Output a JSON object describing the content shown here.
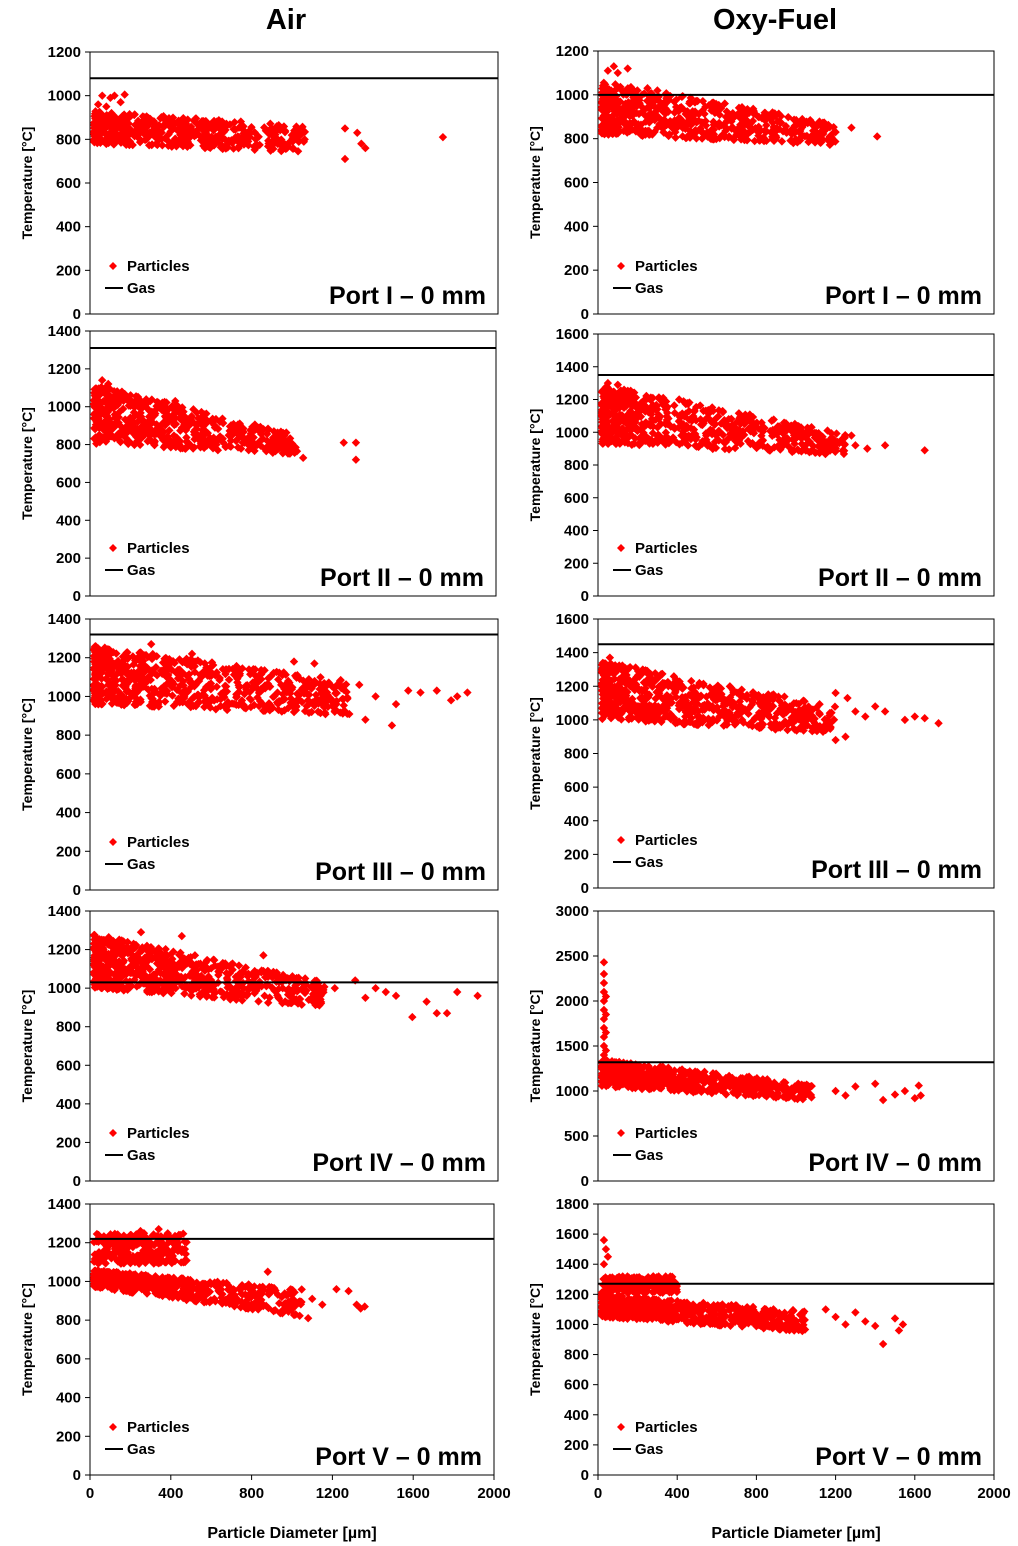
{
  "columns": [
    "Air",
    "Oxy-Fuel"
  ],
  "chart_data": [
    {
      "type": "scatter",
      "panel": "Port I – 0 mm",
      "column": "Air",
      "ylabel": "Temperature [°C]",
      "xlim": [
        0,
        2000
      ],
      "ylim": [
        0,
        1200
      ],
      "yticks": [
        0,
        200,
        400,
        600,
        800,
        1000,
        1200
      ],
      "series": [
        {
          "name": "Particles",
          "kind": "scatter",
          "color": "#ff0000",
          "cloud": {
            "x": [
              20,
              1060
            ],
            "y_start": [
              780,
              930
            ],
            "y_end": [
              740,
              860
            ],
            "count": 520
          },
          "points": [
            [
              40,
              960
            ],
            [
              60,
              1000
            ],
            [
              80,
              950
            ],
            [
              100,
              990
            ],
            [
              120,
              1000
            ],
            [
              150,
              970
            ],
            [
              170,
              1005
            ],
            [
              1250,
              850
            ],
            [
              1310,
              830
            ],
            [
              1330,
              780
            ],
            [
              1350,
              760
            ],
            [
              1250,
              710
            ],
            [
              1730,
              810
            ]
          ]
        },
        {
          "name": "Gas",
          "kind": "line",
          "color": "#000000",
          "y": 1080
        }
      ]
    },
    {
      "type": "scatter",
      "panel": "Port I – 0 mm",
      "column": "Oxy-Fuel",
      "ylabel": "Temperature [°C]",
      "xlim": [
        0,
        2000
      ],
      "ylim": [
        0,
        1200
      ],
      "yticks": [
        0,
        200,
        400,
        600,
        800,
        1000,
        1200
      ],
      "series": [
        {
          "name": "Particles",
          "kind": "scatter",
          "color": "#ff0000",
          "cloud": {
            "x": [
              20,
              1200
            ],
            "y_start": [
              820,
              1060
            ],
            "y_end": [
              770,
              870
            ],
            "count": 620
          },
          "points": [
            [
              50,
              1110
            ],
            [
              80,
              1130
            ],
            [
              100,
              1100
            ],
            [
              150,
              1120
            ],
            [
              250,
              1030
            ],
            [
              300,
              1020
            ],
            [
              1200,
              830
            ],
            [
              1280,
              850
            ],
            [
              1410,
              810
            ]
          ]
        },
        {
          "name": "Gas",
          "kind": "line",
          "color": "#000000",
          "y": 1000
        }
      ]
    },
    {
      "type": "scatter",
      "panel": "Port II – 0 mm",
      "column": "Air",
      "ylabel": "Temperature [°C]",
      "xlim": [
        0,
        2000
      ],
      "ylim": [
        0,
        1400
      ],
      "yticks": [
        0,
        200,
        400,
        600,
        800,
        1000,
        1200,
        1400
      ],
      "series": [
        {
          "name": "Particles",
          "kind": "scatter",
          "color": "#ff0000",
          "cloud": {
            "x": [
              20,
              1020
            ],
            "y_start": [
              800,
              1120
            ],
            "y_end": [
              750,
              850
            ],
            "count": 560
          },
          "points": [
            [
              60,
              1140
            ],
            [
              90,
              1120
            ],
            [
              200,
              1060
            ],
            [
              420,
              1030
            ],
            [
              1050,
              730
            ],
            [
              1250,
              810
            ],
            [
              1310,
              810
            ],
            [
              1310,
              720
            ]
          ]
        },
        {
          "name": "Gas",
          "kind": "line",
          "color": "#000000",
          "y": 1310
        }
      ]
    },
    {
      "type": "scatter",
      "panel": "Port II – 0 mm",
      "column": "Oxy-Fuel",
      "ylabel": "Temperature [°C]",
      "xlim": [
        0,
        2000
      ],
      "ylim": [
        0,
        1600
      ],
      "yticks": [
        0,
        200,
        400,
        600,
        800,
        1000,
        1200,
        1400,
        1600
      ],
      "series": [
        {
          "name": "Particles",
          "kind": "scatter",
          "color": "#ff0000",
          "cloud": {
            "x": [
              20,
              1250
            ],
            "y_start": [
              930,
              1290
            ],
            "y_end": [
              860,
              990
            ],
            "count": 650
          },
          "points": [
            [
              50,
              1300
            ],
            [
              100,
              1290
            ],
            [
              410,
              1200
            ],
            [
              440,
              1180
            ],
            [
              1280,
              980
            ],
            [
              1300,
              920
            ],
            [
              1360,
              900
            ],
            [
              1450,
              920
            ],
            [
              1650,
              890
            ]
          ]
        },
        {
          "name": "Gas",
          "kind": "line",
          "color": "#000000",
          "y": 1350
        }
      ]
    },
    {
      "type": "scatter",
      "panel": "Port III – 0 mm",
      "column": "Air",
      "ylabel": "Temperature [°C]",
      "xlim": [
        0,
        2000
      ],
      "ylim": [
        0,
        1400
      ],
      "yticks": [
        0,
        200,
        400,
        600,
        800,
        1000,
        1200,
        1400
      ],
      "series": [
        {
          "name": "Particles",
          "kind": "scatter",
          "color": "#ff0000",
          "cloud": {
            "x": [
              20,
              1280
            ],
            "y_start": [
              960,
              1260
            ],
            "y_end": [
              900,
              1080
            ],
            "count": 700
          },
          "points": [
            [
              300,
              1270
            ],
            [
              500,
              1220
            ],
            [
              1000,
              1180
            ],
            [
              1100,
              1170
            ],
            [
              1320,
              1060
            ],
            [
              1400,
              1000
            ],
            [
              1500,
              960
            ],
            [
              1560,
              1030
            ],
            [
              1620,
              1020
            ],
            [
              1700,
              1030
            ],
            [
              1770,
              980
            ],
            [
              1800,
              1000
            ],
            [
              1850,
              1020
            ],
            [
              1480,
              850
            ],
            [
              1350,
              880
            ]
          ]
        },
        {
          "name": "Gas",
          "kind": "line",
          "color": "#000000",
          "y": 1320
        }
      ]
    },
    {
      "type": "scatter",
      "panel": "Port III – 0 mm",
      "column": "Oxy-Fuel",
      "ylabel": "Temperature [°C]",
      "xlim": [
        0,
        2000
      ],
      "ylim": [
        0,
        1600
      ],
      "yticks": [
        0,
        200,
        400,
        600,
        800,
        1000,
        1200,
        1400,
        1600
      ],
      "series": [
        {
          "name": "Particles",
          "kind": "scatter",
          "color": "#ff0000",
          "cloud": {
            "x": [
              20,
              1200
            ],
            "y_start": [
              1000,
              1350
            ],
            "y_end": [
              920,
              1080
            ],
            "count": 680
          },
          "points": [
            [
              60,
              1370
            ],
            [
              1200,
              1160
            ],
            [
              1260,
              1130
            ],
            [
              1300,
              1050
            ],
            [
              1350,
              1020
            ],
            [
              1400,
              1080
            ],
            [
              1450,
              1050
            ],
            [
              1550,
              1000
            ],
            [
              1600,
              1020
            ],
            [
              1650,
              1010
            ],
            [
              1720,
              980
            ],
            [
              1250,
              900
            ],
            [
              1200,
              880
            ]
          ]
        },
        {
          "name": "Gas",
          "kind": "line",
          "color": "#000000",
          "y": 1450
        }
      ]
    },
    {
      "type": "scatter",
      "panel": "Port IV – 0 mm",
      "column": "Air",
      "ylabel": "Temperature [°C]",
      "xlim": [
        0,
        2000
      ],
      "ylim": [
        0,
        1400
      ],
      "yticks": [
        0,
        200,
        400,
        600,
        800,
        1000,
        1200,
        1400
      ],
      "series": [
        {
          "name": "Particles",
          "kind": "scatter",
          "color": "#ff0000",
          "cloud": {
            "x": [
              20,
              1150
            ],
            "y_start": [
              1000,
              1280
            ],
            "y_end": [
              900,
              1030
            ],
            "count": 700
          },
          "points": [
            [
              250,
              1290
            ],
            [
              450,
              1270
            ],
            [
              850,
              1170
            ],
            [
              1200,
              1000
            ],
            [
              1300,
              1040
            ],
            [
              1350,
              950
            ],
            [
              1400,
              1000
            ],
            [
              1450,
              980
            ],
            [
              1500,
              960
            ],
            [
              1580,
              850
            ],
            [
              1650,
              930
            ],
            [
              1750,
              870
            ],
            [
              1800,
              980
            ],
            [
              1900,
              960
            ],
            [
              1700,
              870
            ]
          ]
        },
        {
          "name": "Gas",
          "kind": "line",
          "color": "#000000",
          "y": 1030
        }
      ]
    },
    {
      "type": "scatter",
      "panel": "Port IV – 0 mm",
      "column": "Oxy-Fuel",
      "ylabel": "Temperature [°C]",
      "xlim": [
        0,
        2000
      ],
      "ylim": [
        0,
        3000
      ],
      "yticks": [
        0,
        500,
        1000,
        1500,
        2000,
        2500,
        3000
      ],
      "series": [
        {
          "name": "Particles",
          "kind": "scatter",
          "color": "#ff0000",
          "cloud": {
            "x": [
              20,
              1080
            ],
            "y_start": [
              1050,
              1350
            ],
            "y_end": [
              900,
              1080
            ],
            "count": 620
          },
          "points": [
            [
              30,
              1300
            ],
            [
              30,
              1400
            ],
            [
              30,
              1500
            ],
            [
              30,
              1600
            ],
            [
              30,
              1700
            ],
            [
              30,
              1800
            ],
            [
              30,
              1900
            ],
            [
              30,
              2000
            ],
            [
              30,
              2100
            ],
            [
              30,
              2200
            ],
            [
              30,
              2300
            ],
            [
              30,
              2430
            ],
            [
              40,
              1450
            ],
            [
              40,
              1650
            ],
            [
              40,
              1850
            ],
            [
              40,
              2050
            ],
            [
              1200,
              1000
            ],
            [
              1250,
              950
            ],
            [
              1300,
              1050
            ],
            [
              1400,
              1080
            ],
            [
              1440,
              900
            ],
            [
              1500,
              960
            ],
            [
              1550,
              1000
            ],
            [
              1600,
              920
            ],
            [
              1620,
              1060
            ],
            [
              1630,
              950
            ]
          ]
        },
        {
          "name": "Gas",
          "kind": "line",
          "color": "#000000",
          "y": 1320
        }
      ]
    },
    {
      "type": "scatter",
      "panel": "Port V – 0 mm",
      "column": "Air",
      "ylabel": "Temperature [°C]",
      "xlim": [
        0,
        2000
      ],
      "ylim": [
        0,
        1400
      ],
      "yticks": [
        0,
        200,
        400,
        600,
        800,
        1000,
        1200,
        1400
      ],
      "series": [
        {
          "name": "Particles",
          "kind": "scatter",
          "color": "#ff0000",
          "cloud": {
            "x": [
              20,
              1050
            ],
            "y_start": [
              970,
              1060
            ],
            "y_end": [
              820,
              960
            ],
            "count": 600
          },
          "upper": {
            "x": [
              20,
              480
            ],
            "y": [
              1090,
              1250
            ],
            "count": 250
          },
          "points": [
            [
              340,
              1270
            ],
            [
              250,
              1260
            ],
            [
              880,
              1050
            ],
            [
              1100,
              910
            ],
            [
              1150,
              880
            ],
            [
              1220,
              960
            ],
            [
              1280,
              950
            ],
            [
              1320,
              880
            ],
            [
              1340,
              860
            ],
            [
              1360,
              870
            ],
            [
              1080,
              810
            ]
          ]
        },
        {
          "name": "Gas",
          "kind": "line",
          "color": "#000000",
          "y": 1220
        }
      ]
    },
    {
      "type": "scatter",
      "panel": "Port V – 0 mm",
      "column": "Oxy-Fuel",
      "ylabel": "Temperature [°C]",
      "xlim": [
        0,
        2000
      ],
      "ylim": [
        0,
        1800
      ],
      "yticks": [
        0,
        200,
        400,
        600,
        800,
        1000,
        1200,
        1400,
        1600,
        1800
      ],
      "series": [
        {
          "name": "Particles",
          "kind": "scatter",
          "color": "#ff0000",
          "cloud": {
            "x": [
              20,
              1050
            ],
            "y_start": [
              1050,
              1200
            ],
            "y_end": [
              950,
              1090
            ],
            "count": 600
          },
          "upper": {
            "x": [
              20,
              400
            ],
            "y": [
              1210,
              1320
            ],
            "count": 200
          },
          "points": [
            [
              30,
              1560
            ],
            [
              40,
              1500
            ],
            [
              50,
              1450
            ],
            [
              30,
              1400
            ],
            [
              1150,
              1100
            ],
            [
              1200,
              1050
            ],
            [
              1250,
              1000
            ],
            [
              1300,
              1080
            ],
            [
              1350,
              1020
            ],
            [
              1400,
              990
            ],
            [
              1440,
              870
            ],
            [
              1500,
              1040
            ],
            [
              1520,
              960
            ],
            [
              1540,
              1000
            ]
          ]
        },
        {
          "name": "Gas",
          "kind": "line",
          "color": "#000000",
          "y": 1270
        }
      ]
    }
  ],
  "xlabel": "Particle Diameter [µm]",
  "xticks": [
    0,
    400,
    800,
    1200,
    1600,
    2000
  ],
  "legend": {
    "particles": "Particles",
    "gas": "Gas"
  },
  "colors": {
    "particles": "#ff0000",
    "gas": "#000000"
  }
}
